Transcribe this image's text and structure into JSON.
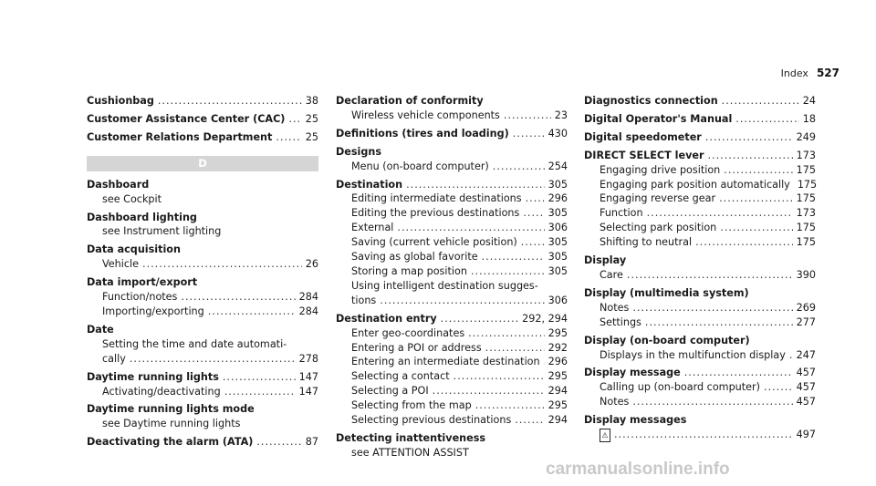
{
  "header": {
    "label": "Index",
    "page": "527"
  },
  "col1": {
    "top_entries": [
      {
        "title": "Cushionbag",
        "page": "38"
      },
      {
        "title": "Customer Assistance Center (CAC)",
        "page": "25"
      },
      {
        "title": "Customer Relations Department",
        "page": "25"
      }
    ],
    "section_letter": "D",
    "entries": {
      "dashboard": {
        "title": "Dashboard",
        "see": "see Cockpit"
      },
      "dashboard_lighting": {
        "title": "Dashboard lighting",
        "see": "see Instrument lighting"
      },
      "data_acquisition": {
        "title": "Data acquisition",
        "sub": {
          "text": "Vehicle",
          "page": "26"
        }
      },
      "data_import": {
        "title": "Data import/export",
        "subs": [
          {
            "text": "Function/notes",
            "page": "284"
          },
          {
            "text": "Importing/exporting",
            "page": "284"
          }
        ]
      },
      "date": {
        "title": "Date",
        "sub_line1": "Setting the time and date automati-",
        "sub_line2": "cally",
        "page": "278"
      },
      "daytime_running_lights": {
        "title": "Daytime running lights",
        "page": "147",
        "sub": {
          "text": "Activating/deactivating",
          "page": "147"
        }
      },
      "daytime_running_lights_mode": {
        "title": "Daytime running lights mode",
        "see": "see Daytime running lights"
      },
      "deactivating_alarm": {
        "title": "Deactivating the alarm (ATA)",
        "page": "87"
      }
    }
  },
  "col2": {
    "declaration": {
      "title": "Declaration of conformity",
      "sub": {
        "text": "Wireless vehicle components",
        "page": "23"
      }
    },
    "definitions": {
      "title": "Definitions (tires and loading)",
      "page": "430"
    },
    "designs": {
      "title": "Designs",
      "sub": {
        "text": "Menu (on-board computer)",
        "page": "254"
      }
    },
    "destination": {
      "title": "Destination",
      "page": "305",
      "subs": [
        {
          "text": "Editing intermediate destinations",
          "page": "296"
        },
        {
          "text": "Editing the previous destinations",
          "page": "305"
        },
        {
          "text": "External",
          "page": "306"
        },
        {
          "text": "Saving (current vehicle position)",
          "page": "305"
        },
        {
          "text": "Saving as global favorite",
          "page": "305"
        },
        {
          "text": "Storing a map position",
          "page": "305"
        }
      ],
      "wrap_line1": "Using intelligent destination sugges-",
      "wrap_line2": "tions",
      "wrap_page": "306"
    },
    "destination_entry": {
      "title": "Destination entry",
      "page": "292, 294",
      "subs": [
        {
          "text": "Enter geo-coordinates",
          "page": "295"
        },
        {
          "text": "Entering a POI or address",
          "page": "292"
        },
        {
          "text": "Entering an intermediate destination",
          "page": "296"
        },
        {
          "text": "Selecting a contact",
          "page": "295"
        },
        {
          "text": "Selecting a POI",
          "page": "294"
        },
        {
          "text": "Selecting from the map",
          "page": "295"
        },
        {
          "text": "Selecting previous destinations",
          "page": "294"
        }
      ]
    },
    "detecting": {
      "title": "Detecting inattentiveness",
      "see": "see ATTENTION ASSIST"
    }
  },
  "col3": {
    "diagnostics": {
      "title": "Diagnostics connection",
      "page": "24"
    },
    "digital_operator": {
      "title": "Digital Operator's Manual",
      "page": "18"
    },
    "digital_speedometer": {
      "title": "Digital speedometer",
      "page": "249"
    },
    "direct_select": {
      "title": "DIRECT SELECT lever",
      "page": "173",
      "subs": [
        {
          "text": "Engaging drive position",
          "page": "175"
        },
        {
          "text": "Engaging park position automatically",
          "page": "175"
        },
        {
          "text": "Engaging reverse gear",
          "page": "175"
        },
        {
          "text": "Function",
          "page": "173"
        },
        {
          "text": "Selecting park position",
          "page": "175"
        },
        {
          "text": "Shifting to neutral",
          "page": "175"
        }
      ]
    },
    "display": {
      "title": "Display",
      "sub": {
        "text": "Care",
        "page": "390"
      }
    },
    "display_multimedia": {
      "title": "Display (multimedia system)",
      "subs": [
        {
          "text": "Notes",
          "page": "269"
        },
        {
          "text": "Settings",
          "page": "277"
        }
      ]
    },
    "display_onboard": {
      "title": "Display (on-board computer)",
      "sub": {
        "text": "Displays in the multifunction display",
        "page": "247"
      }
    },
    "display_message": {
      "title": "Display message",
      "page": "457",
      "subs": [
        {
          "text": "Calling up (on-board computer)",
          "page": "457"
        },
        {
          "text": "Notes",
          "page": "457"
        }
      ]
    },
    "display_messages": {
      "title": "Display messages",
      "icon": "warning-symbol-icon",
      "page": "497"
    }
  },
  "watermark": "carmanualsonline.info"
}
